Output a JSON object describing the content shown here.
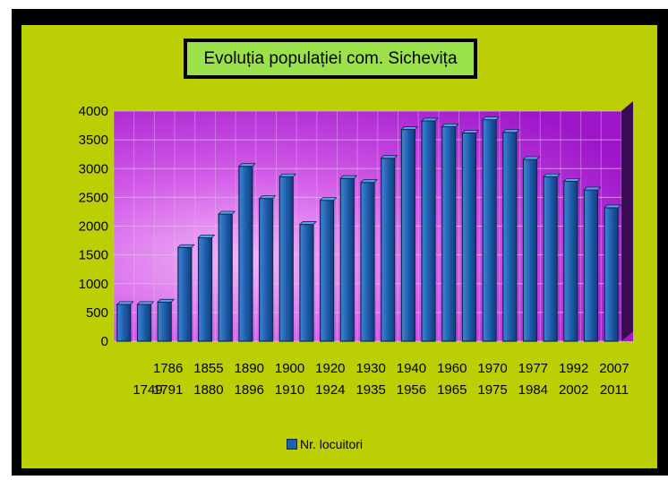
{
  "colors": {
    "panel": "#bccf05",
    "title_box": "#9be24a",
    "plot_top": "#9d15c9",
    "plot_mid": "#e78bf5",
    "bar": "#1f5fae",
    "bar_edge": "#0b2a55"
  },
  "chart_data": {
    "type": "bar",
    "title": "Evoluția populației com. Sichevița",
    "xlabel": "",
    "ylabel": "",
    "ylim": [
      0,
      4000
    ],
    "yticks": [
      0,
      500,
      1000,
      1500,
      2000,
      2500,
      3000,
      3500,
      4000
    ],
    "grid": true,
    "legend_position": "bottom",
    "categories": [
      "1749",
      "1786",
      "1791",
      "1855",
      "1880",
      "1890",
      "1896",
      "1900",
      "1910",
      "1920",
      "1924",
      "1930",
      "1935",
      "1940",
      "1956",
      "1960",
      "1965",
      "1970",
      "1975",
      "1977",
      "1984",
      "1992",
      "2002",
      "2007",
      "2011"
    ],
    "series": [
      {
        "name": "Nr. locuitori",
        "values": [
          640,
          640,
          680,
          1630,
          1800,
          2210,
          3040,
          2480,
          2860,
          2030,
          2450,
          2830,
          2760,
          3180,
          3680,
          3830,
          3730,
          3620,
          3850,
          3630,
          3160,
          2860,
          2780,
          2630,
          2320
        ]
      }
    ]
  }
}
